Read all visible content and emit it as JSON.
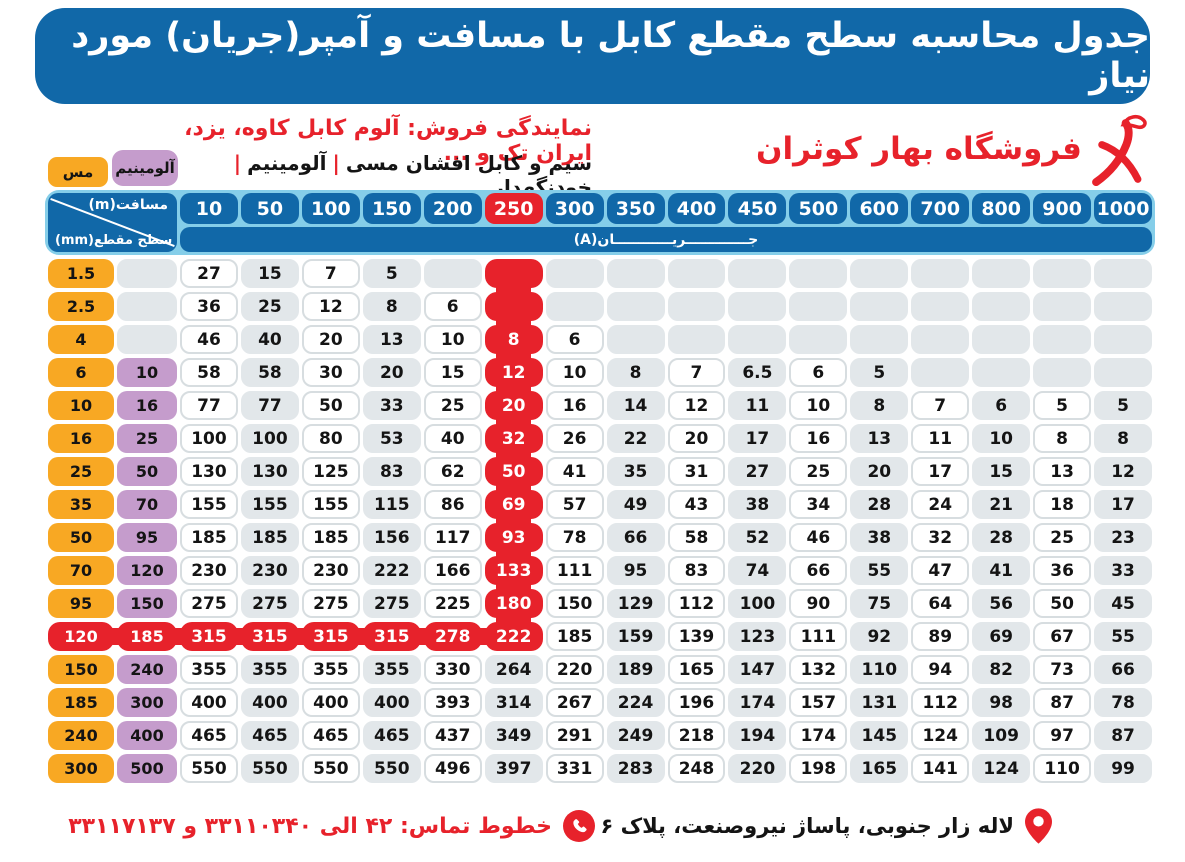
{
  "title": "جدول محاسبه سطح مقطع کابل با مسافت و آمپر(جریان) مورد نیاز",
  "brand": {
    "store_name": "فروشگاه بهار کوثران",
    "logo": "red-calligraphy-bird-mark",
    "dealer_line": "نمایندگی فروش: آلوم کابل کاوه، یزد، ایران تک و ...",
    "products_segments": [
      "سیم و کابل افشان مسی",
      "آلومینیم",
      "خودنگهدار"
    ],
    "products_separator": "|"
  },
  "legend": {
    "copper_label": "مس",
    "aluminum_label": "آلومینیم"
  },
  "table": {
    "corner_top_label": "مسافت(m)",
    "corner_bottom_label": "سطح مقطع(mm)",
    "current_band_label": "جـــــــــــــریــــــــــــان(A)",
    "distance_headers": [
      "10",
      "50",
      "100",
      "150",
      "200",
      "250",
      "300",
      "350",
      "400",
      "450",
      "500",
      "600",
      "700",
      "800",
      "900",
      "1000"
    ],
    "highlighted_distance": "250",
    "highlighted_distance_index": 5,
    "highlighted_row_copper": "120",
    "highlighted_row_index": 11,
    "rows": [
      {
        "copper": "1.5",
        "aluminum": "",
        "amps": [
          "27",
          "15",
          "7",
          "5",
          "",
          "",
          "",
          "",
          "",
          "",
          "",
          "",
          "",
          "",
          "",
          ""
        ]
      },
      {
        "copper": "2.5",
        "aluminum": "",
        "amps": [
          "36",
          "25",
          "12",
          "8",
          "6",
          "",
          "",
          "",
          "",
          "",
          "",
          "",
          "",
          "",
          "",
          ""
        ]
      },
      {
        "copper": "4",
        "aluminum": "",
        "amps": [
          "46",
          "40",
          "20",
          "13",
          "10",
          "8",
          "6",
          "",
          "",
          "",
          "",
          "",
          "",
          "",
          "",
          ""
        ]
      },
      {
        "copper": "6",
        "aluminum": "10",
        "amps": [
          "58",
          "58",
          "30",
          "20",
          "15",
          "12",
          "10",
          "8",
          "7",
          "6.5",
          "6",
          "5",
          "",
          "",
          "",
          ""
        ]
      },
      {
        "copper": "10",
        "aluminum": "16",
        "amps": [
          "77",
          "77",
          "50",
          "33",
          "25",
          "20",
          "16",
          "14",
          "12",
          "11",
          "10",
          "8",
          "7",
          "6",
          "5",
          "5"
        ]
      },
      {
        "copper": "16",
        "aluminum": "25",
        "amps": [
          "100",
          "100",
          "80",
          "53",
          "40",
          "32",
          "26",
          "22",
          "20",
          "17",
          "16",
          "13",
          "11",
          "10",
          "8",
          "8"
        ]
      },
      {
        "copper": "25",
        "aluminum": "50",
        "amps": [
          "130",
          "130",
          "125",
          "83",
          "62",
          "50",
          "41",
          "35",
          "31",
          "27",
          "25",
          "20",
          "17",
          "15",
          "13",
          "12"
        ]
      },
      {
        "copper": "35",
        "aluminum": "70",
        "amps": [
          "155",
          "155",
          "155",
          "115",
          "86",
          "69",
          "57",
          "49",
          "43",
          "38",
          "34",
          "28",
          "24",
          "21",
          "18",
          "17"
        ]
      },
      {
        "copper": "50",
        "aluminum": "95",
        "amps": [
          "185",
          "185",
          "185",
          "156",
          "117",
          "93",
          "78",
          "66",
          "58",
          "52",
          "46",
          "38",
          "32",
          "28",
          "25",
          "23"
        ]
      },
      {
        "copper": "70",
        "aluminum": "120",
        "amps": [
          "230",
          "230",
          "230",
          "222",
          "166",
          "133",
          "111",
          "95",
          "83",
          "74",
          "66",
          "55",
          "47",
          "41",
          "36",
          "33"
        ]
      },
      {
        "copper": "95",
        "aluminum": "150",
        "amps": [
          "275",
          "275",
          "275",
          "275",
          "225",
          "180",
          "150",
          "129",
          "112",
          "100",
          "90",
          "75",
          "64",
          "56",
          "50",
          "45"
        ]
      },
      {
        "copper": "120",
        "aluminum": "185",
        "amps": [
          "315",
          "315",
          "315",
          "315",
          "278",
          "222",
          "185",
          "159",
          "139",
          "123",
          "111",
          "92",
          "89",
          "69",
          "67",
          "55"
        ]
      },
      {
        "copper": "150",
        "aluminum": "240",
        "amps": [
          "355",
          "355",
          "355",
          "355",
          "330",
          "264",
          "220",
          "189",
          "165",
          "147",
          "132",
          "110",
          "94",
          "82",
          "73",
          "66"
        ]
      },
      {
        "copper": "185",
        "aluminum": "300",
        "amps": [
          "400",
          "400",
          "400",
          "400",
          "393",
          "314",
          "267",
          "224",
          "196",
          "174",
          "157",
          "131",
          "112",
          "98",
          "87",
          "78"
        ]
      },
      {
        "copper": "240",
        "aluminum": "400",
        "amps": [
          "465",
          "465",
          "465",
          "465",
          "437",
          "349",
          "291",
          "249",
          "218",
          "194",
          "174",
          "145",
          "124",
          "109",
          "97",
          "87"
        ]
      },
      {
        "copper": "300",
        "aluminum": "500",
        "amps": [
          "550",
          "550",
          "550",
          "550",
          "496",
          "397",
          "331",
          "283",
          "248",
          "220",
          "198",
          "165",
          "141",
          "124",
          "110",
          "99"
        ]
      }
    ]
  },
  "footer": {
    "contact_label": "خطوط تماس: ۴۲ الی ۳۳۱۱۰۳۴۰ و ۳۳۱۱۷۱۳۷",
    "address": "لاله زار جنوبی، پاساژ نیروصنعت، پلاک ۶"
  },
  "colors": {
    "header_blue": "#1168a8",
    "light_blue": "#85cee9",
    "highlight_red": "#e7222b",
    "copper_orange": "#f8a823",
    "aluminum_purple": "#c59ccc",
    "empty_cell_gray": "#e2e7ea"
  }
}
